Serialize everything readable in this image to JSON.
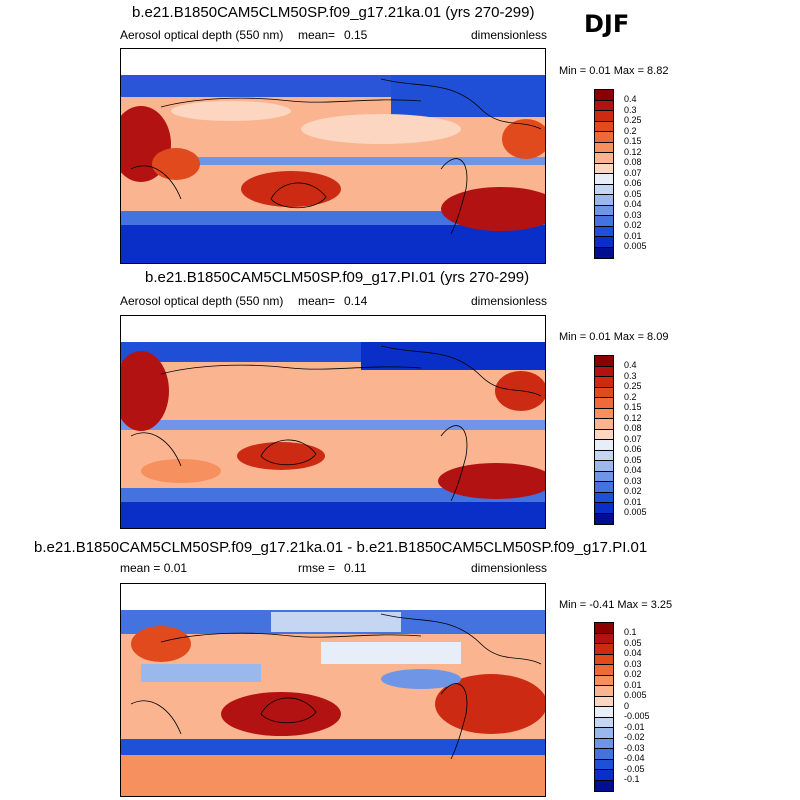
{
  "season": "DJF",
  "panels": [
    {
      "title": "b.e21.B1850CAM5CLM50SP.f09_g17.21ka.01 (yrs 270-299)",
      "left_label": "Aerosol optical depth (550 nm)",
      "mid_label": "mean=",
      "mid_value": "0.15",
      "right_label": "dimensionless",
      "minmax": "Min =  0.01 Max =  8.82",
      "colorbar": {
        "labels": [
          "0.4",
          "0.3",
          "0.25",
          "0.2",
          "0.15",
          "0.12",
          "0.08",
          "0.07",
          "0.06",
          "0.05",
          "0.04",
          "0.03",
          "0.02",
          "0.01",
          "0.005"
        ],
        "colors": [
          "#8b0000",
          "#b31212",
          "#cc2a12",
          "#e04a1c",
          "#ed6a3a",
          "#f6905f",
          "#fab48f",
          "#fcd6c0",
          "#e8eef8",
          "#c5d6f2",
          "#9bb8ec",
          "#6f96e6",
          "#4473e0",
          "#1f50d8",
          "#0a2ec8",
          "#000e90"
        ]
      }
    },
    {
      "title": "b.e21.B1850CAM5CLM50SP.f09_g17.PI.01 (yrs 270-299)",
      "left_label": "Aerosol optical depth (550 nm)",
      "mid_label": "mean=",
      "mid_value": "0.14",
      "right_label": "dimensionless",
      "minmax": "Min =  0.01 Max =  8.09",
      "colorbar": {
        "labels": [
          "0.4",
          "0.3",
          "0.25",
          "0.2",
          "0.15",
          "0.12",
          "0.08",
          "0.07",
          "0.06",
          "0.05",
          "0.04",
          "0.03",
          "0.02",
          "0.01",
          "0.005"
        ],
        "colors": [
          "#8b0000",
          "#b31212",
          "#cc2a12",
          "#e04a1c",
          "#ed6a3a",
          "#f6905f",
          "#fab48f",
          "#fcd6c0",
          "#e8eef8",
          "#c5d6f2",
          "#9bb8ec",
          "#6f96e6",
          "#4473e0",
          "#1f50d8",
          "#0a2ec8",
          "#000e90"
        ]
      }
    },
    {
      "title": "b.e21.B1850CAM5CLM50SP.f09_g17.21ka.01 - b.e21.B1850CAM5CLM50SP.f09_g17.PI.01",
      "left_label": "mean =  0.01",
      "mid_label": "rmse =",
      "mid_value": "0.11",
      "right_label": "dimensionless",
      "minmax": "Min =  -0.41 Max =  3.25",
      "colorbar": {
        "labels": [
          "0.1",
          "0.05",
          "0.04",
          "0.03",
          "0.02",
          "0.01",
          "0.005",
          "0",
          "-0.005",
          "-0.01",
          "-0.02",
          "-0.03",
          "-0.04",
          "-0.05",
          "-0.1"
        ],
        "colors": [
          "#8b0000",
          "#b31212",
          "#cc2a12",
          "#e04a1c",
          "#ed6a3a",
          "#f6905f",
          "#fab48f",
          "#fcd6c0",
          "#e8eef8",
          "#c5d6f2",
          "#9bb8ec",
          "#6f96e6",
          "#4473e0",
          "#1f50d8",
          "#0a2ec8",
          "#000e90"
        ]
      }
    }
  ]
}
